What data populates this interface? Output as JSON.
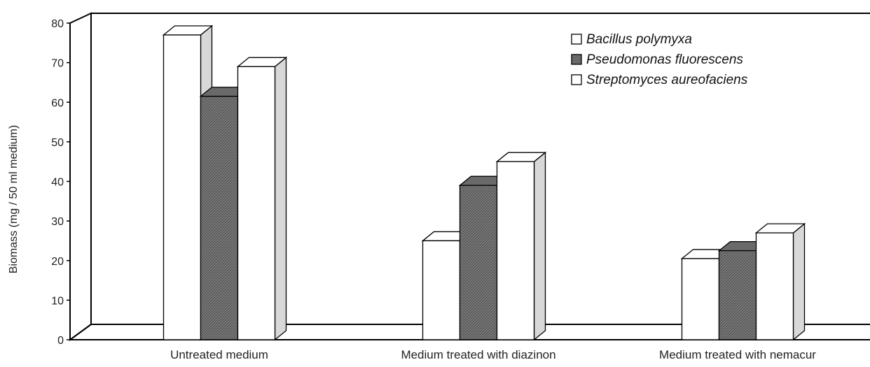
{
  "chart_data": {
    "type": "bar",
    "title": "",
    "xlabel": "",
    "ylabel": "Biomass (mg / 50 ml medium)",
    "ylim": [
      0,
      80
    ],
    "yticks": [
      0,
      10,
      20,
      30,
      40,
      50,
      60,
      70,
      80
    ],
    "categories": [
      "Untreated medium",
      "Medium treated with diazinon",
      "Medium treated with nemacur"
    ],
    "series": [
      {
        "name": "Bacillus polymyxa",
        "values": [
          77,
          25,
          20.5
        ],
        "color": "#ffffff",
        "hatched": false
      },
      {
        "name": "Pseudomonas fluorescens",
        "values": [
          61.5,
          39,
          22.5
        ],
        "color": "#777777",
        "hatched": true
      },
      {
        "name": "Streptomyces aureofaciens",
        "values": [
          69,
          45,
          27
        ],
        "color": "#ffffff",
        "hatched": false
      }
    ],
    "style": "3d-columns",
    "legend_position": "top-right",
    "grid": false
  }
}
